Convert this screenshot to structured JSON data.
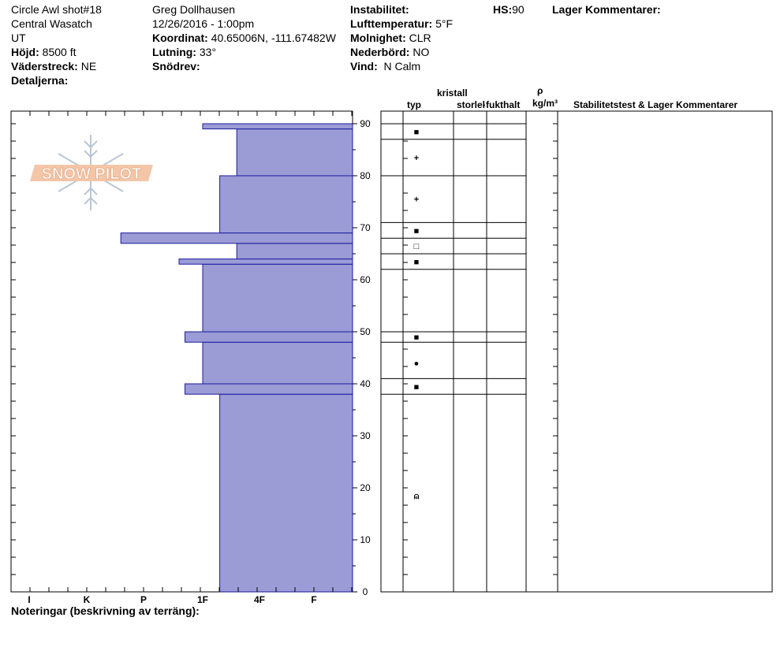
{
  "header": {
    "left": [
      "Circle Awl shot#18",
      "Central Wasatch",
      "UT"
    ],
    "hojd_label": "Höjd:",
    "hojd_value": "8500 ft",
    "vaderstreck_label": "Väderstreck:",
    "vaderstreck_value": "NE",
    "detaljerna_label": "Detaljerna:",
    "observer": "Greg Dollhausen",
    "datetime": "12/26/2016 - 1:00pm",
    "koordinat_label": "Koordinat:",
    "koordinat_value": "40.65006N, -111.67482W",
    "lutning_label": "Lutning:",
    "lutning_value": "33°",
    "snodrev_label": "Snödrev:",
    "instabilitet_label": "Instabilitet:",
    "lufttemp_label": "Lufttemperatur:",
    "lufttemp_value": "5°F",
    "molnighet_label": "Molnighet:",
    "molnighet_value": "CLR",
    "nederbord_label": "Nederbörd:",
    "nederbord_value": "NO",
    "vind_label": "Vind:",
    "vind_value": "N Calm",
    "hs_label": "HS:",
    "hs_value": "90",
    "lager_label": "Lager Kommentarer:"
  },
  "logo": {
    "text": "SNOW PILOT"
  },
  "columns": {
    "kristall": "kristall",
    "typ": "typ",
    "storlek": "storlek",
    "fukthalt": "fukthalt",
    "rho": "ρ",
    "density_unit": "kg/m³",
    "stability": "Stabilitetstest & Lager Kommentarer"
  },
  "footer": {
    "notes_label": "Noteringar (beskrivning av terräng):"
  },
  "colors": {
    "hardness_fill": "#9b9bd6",
    "hardness_edge": "#1b1b9e"
  },
  "chart_data": {
    "type": "bar",
    "title": "",
    "hardness_scale": [
      "I",
      "K",
      "P",
      "1F",
      "4F",
      "F"
    ],
    "hardness_scale_note": "hardness index: F=1, 4F=2, 1F=3, P=4, K=5, I=6 (bars grow leftward from F)",
    "y_ticks": [
      0,
      10,
      20,
      30,
      40,
      50,
      60,
      70,
      80,
      90
    ],
    "ylim": [
      0,
      90
    ],
    "ylabel": "",
    "layers": [
      {
        "bottom": 0,
        "top": 38,
        "hardness": 2.7
      },
      {
        "bottom": 38,
        "top": 40,
        "hardness": 3.3
      },
      {
        "bottom": 40,
        "top": 48,
        "hardness": 3.0
      },
      {
        "bottom": 48,
        "top": 50,
        "hardness": 3.3
      },
      {
        "bottom": 50,
        "top": 63,
        "hardness": 3.0
      },
      {
        "bottom": 63,
        "top": 64,
        "hardness": 3.4
      },
      {
        "bottom": 64,
        "top": 67,
        "hardness": 2.4
      },
      {
        "bottom": 67,
        "top": 69,
        "hardness": 4.4
      },
      {
        "bottom": 69,
        "top": 80,
        "hardness": 2.7
      },
      {
        "bottom": 80,
        "top": 89,
        "hardness": 2.4
      },
      {
        "bottom": 89,
        "top": 90,
        "hardness": 3.0
      }
    ],
    "grain_rows": [
      {
        "top": 90,
        "bottom": 87,
        "at": 88.5,
        "symbol": "■"
      },
      {
        "top": 87,
        "bottom": 80,
        "at": 83.5,
        "symbol": "+"
      },
      {
        "top": 80,
        "bottom": 71,
        "at": 75.5,
        "symbol": "+"
      },
      {
        "top": 71,
        "bottom": 68,
        "at": 69.5,
        "symbol": "■"
      },
      {
        "top": 68,
        "bottom": 65,
        "at": 66.5,
        "symbol": "□"
      },
      {
        "top": 65,
        "bottom": 62,
        "at": 63.5,
        "symbol": "■"
      },
      {
        "top": 62,
        "bottom": 50,
        "at": null,
        "symbol": ""
      },
      {
        "top": 50,
        "bottom": 48,
        "at": 49.0,
        "symbol": "■"
      },
      {
        "top": 48,
        "bottom": 41,
        "at": 44.0,
        "symbol": "●"
      },
      {
        "top": 41,
        "bottom": 38,
        "at": 39.5,
        "symbol": "■"
      },
      {
        "top": 38,
        "bottom": 0,
        "at": 18.5,
        "symbol": "⍝"
      }
    ]
  }
}
